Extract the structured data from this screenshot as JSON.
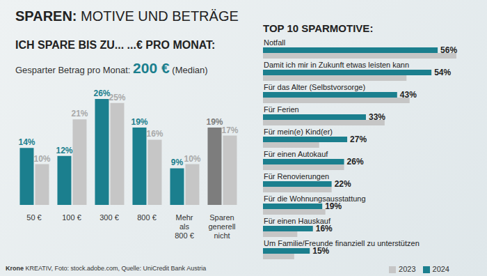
{
  "title": "SPAREN: MOTIVE UND BETRÄGE",
  "source": "Krone KREATIV, Foto: stock.adobe.com, Quelle: UniCredit Bank Austria",
  "chart_data": [
    {
      "type": "bar",
      "title": "ICH SPARE BIS ZU... ...€ PRO MONAT:",
      "annotations": [
        "Gesparter Betrag pro Monat:",
        "200 €",
        "(Median)"
      ],
      "categories": [
        "50 €",
        "100 €",
        "300 €",
        "800 €",
        "Mehr\nals\n800 €",
        "Sparen\ngenerell\nnicht"
      ],
      "series": [
        {
          "name": "2024",
          "colors": [
            "#1b7f8e",
            "#1b7f8e",
            "#1b7f8e",
            "#1b7f8e",
            "#1b7f8e",
            "#7d7d7d"
          ],
          "values": [
            14,
            12,
            26,
            19,
            9,
            19
          ],
          "value_labels": [
            "14%",
            "12%",
            "26%",
            "19%",
            "9%",
            "19%"
          ]
        },
        {
          "name": "2023",
          "color": "#c6c6c6",
          "values": [
            10,
            21,
            25,
            16,
            10,
            17
          ],
          "value_labels": [
            "10%",
            "21%",
            "25%",
            "16%",
            "10%",
            "17%"
          ]
        }
      ],
      "data_labels": true,
      "tick_labels": "x"
    },
    {
      "type": "bar",
      "orientation": "horizontal",
      "title": "TOP 10 SPARMOTIVE:",
      "categories": [
        "Notfall",
        "Damit ich mir in Zukunft etwas leisten kann",
        "Für das Alter (Selbstvorsorge)",
        "Für Ferien",
        "Für mein(e) Kind(er)",
        "Für einen Autokauf",
        "Für Renovierungen",
        "Für die Wohnungsausstattung",
        "Für einen Hauskauf",
        "Um Familie/Freunde finanziell zu unterstützen"
      ],
      "series": [
        {
          "name": "2024",
          "color": "#1b7f8e",
          "values": [
            56,
            54,
            43,
            33,
            27,
            26,
            22,
            19,
            16,
            15
          ],
          "value_labels": [
            "56%",
            "54%",
            "43%",
            "33%",
            "27%",
            "26%",
            "22%",
            "19%",
            "16%",
            "15%"
          ],
          "data_labels": true
        },
        {
          "name": "2023",
          "color": "#c6c6c6",
          "values": [
            62,
            46,
            47,
            39,
            18,
            26,
            22,
            20,
            11,
            10
          ]
        }
      ],
      "legend": "bottom right"
    }
  ]
}
